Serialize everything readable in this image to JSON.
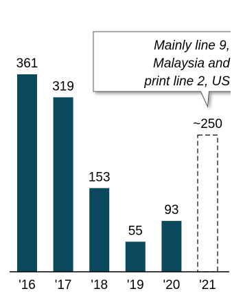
{
  "chart_data": {
    "type": "bar",
    "title": "",
    "xlabel": "",
    "ylabel": "",
    "ylim": [
      0,
      361
    ],
    "categories": [
      "'16",
      "'17",
      "'18",
      "'19",
      "'20",
      "'21"
    ],
    "values": [
      361,
      319,
      153,
      55,
      93,
      250
    ],
    "value_labels": [
      "361",
      "319",
      "153",
      "55",
      "93",
      "~250"
    ],
    "estimated": [
      false,
      false,
      false,
      false,
      false,
      true
    ],
    "bar_color": "#0b4a5e",
    "annotation": {
      "lines": [
        "Mainly line 9,",
        "Malaysia and",
        "print line 2, US"
      ],
      "target_category": "'21"
    }
  }
}
